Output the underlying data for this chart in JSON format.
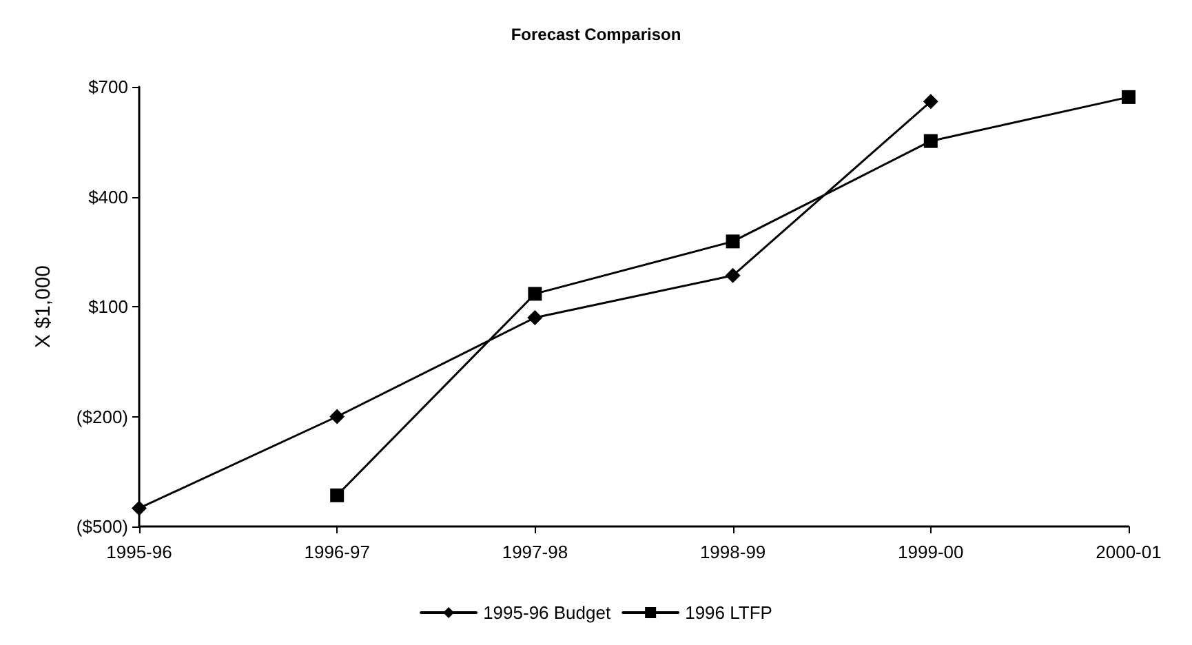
{
  "chart_data": {
    "type": "line",
    "title": "Forecast Comparison",
    "ylabel": "X $1,000",
    "categories": [
      "1995-96",
      "1996-97",
      "1997-98",
      "1998-99",
      "1999-00",
      "2000-01"
    ],
    "series": [
      {
        "name": "1995-96 Budget",
        "color": "#000000",
        "marker": "diamond",
        "values": [
          -450,
          -200,
          70,
          185,
          660,
          null
        ]
      },
      {
        "name": "1996 LTFP",
        "color": "#000000",
        "marker": "square",
        "values": [
          null,
          -415,
          135,
          278,
          552,
          672
        ]
      }
    ],
    "ylim": [
      -500,
      700
    ],
    "yticks": [
      {
        "value": -500,
        "label": "($500)"
      },
      {
        "value": -200,
        "label": "($200)"
      },
      {
        "value": 100,
        "label": "$100"
      },
      {
        "value": 400,
        "label": "$400"
      },
      {
        "value": 700,
        "label": "$700"
      }
    ],
    "grid": false,
    "legend": "bottom",
    "line_style": "solid"
  }
}
